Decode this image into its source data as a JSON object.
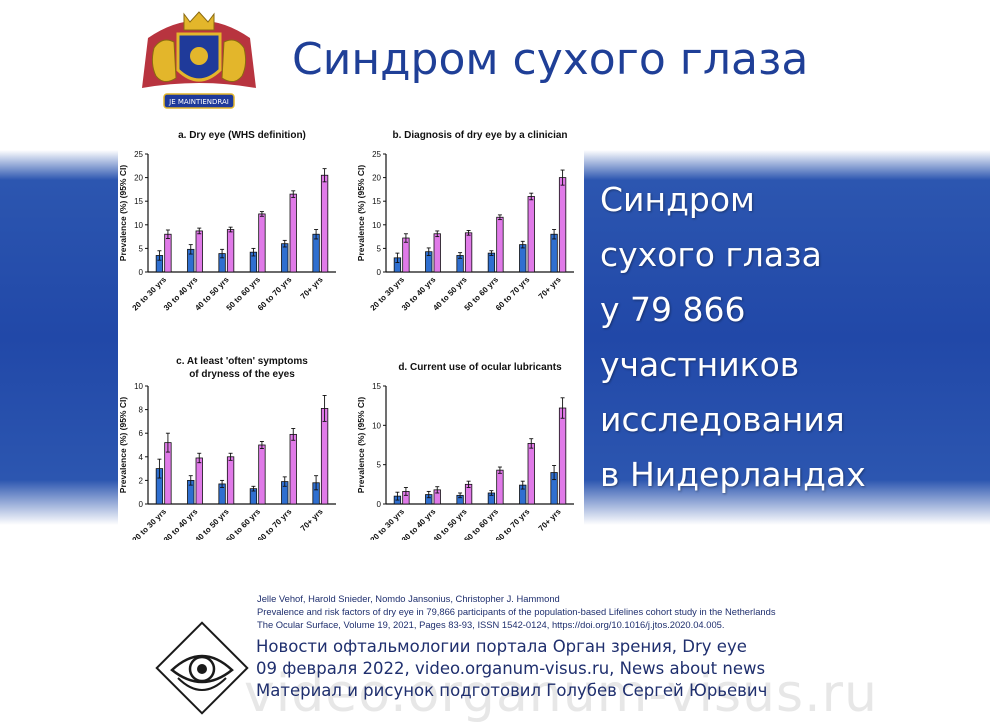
{
  "slide": {
    "title": "Синдром сухого глаза",
    "coat_text": "JE MAINTIENDRAI",
    "side_text": [
      "Синдром",
      "сухого глаза",
      "у 79 866",
      "участников",
      "исследования",
      "в Нидерландах"
    ],
    "references": [
      "Jelle Vehof, Harold Snieder, Nomdo Jansonius, Christopher J. Hammond",
      "Prevalence and risk factors of dry eye in 79,866 participants of the population-based Lifelines cohort study in the Netherlands",
      "The Ocular Surface, Volume 19, 2021, Pages 83-93, ISSN 1542-0124, https://doi.org/10.1016/j.jtos.2020.04.005."
    ],
    "news": [
      "Новости офтальмологии портала Орган зрения, Dry eye",
      "09 февраля 2022, video.organum-visus.ru, News about news",
      "Материал и рисунок подготовил Голубев Сергей Юрьевич"
    ],
    "watermark": "video.organum-visus.ru"
  },
  "colors": {
    "blue_bar": "#2f6fd0",
    "pink_bar": "#e07ae8",
    "title": "#1f3f97",
    "band": "#2148a8"
  },
  "chart_data": [
    {
      "type": "bar",
      "title": "a. Dry eye (WHS definition)",
      "title2": "",
      "ylabel": "Prevalence (%) (95% CI)",
      "ylim": [
        0,
        25
      ],
      "yticks": [
        0,
        5,
        10,
        15,
        20,
        25
      ],
      "categories": [
        "20 to 30 yrs",
        "30 to 40 yrs",
        "40 to 50 yrs",
        "50 to 60 yrs",
        "60 to 70 yrs",
        "70+ yrs"
      ],
      "series": [
        {
          "color": "#2f6fd0",
          "values": [
            3.5,
            4.8,
            3.9,
            4.2,
            6.0,
            8.0
          ],
          "err": [
            1.0,
            1.0,
            0.9,
            0.8,
            0.7,
            1.0
          ]
        },
        {
          "color": "#e07ae8",
          "values": [
            8.0,
            8.7,
            9.0,
            12.3,
            16.5,
            20.5
          ],
          "err": [
            0.9,
            0.6,
            0.5,
            0.5,
            0.7,
            1.4
          ]
        }
      ]
    },
    {
      "type": "bar",
      "title": "b. Diagnosis of dry eye by a clinician",
      "title2": "",
      "ylabel": "Prevalence (%) (95% CI)",
      "ylim": [
        0,
        25
      ],
      "yticks": [
        0,
        5,
        10,
        15,
        20,
        25
      ],
      "categories": [
        "20 to 30 yrs",
        "30 to 40 yrs",
        "40 to 50 yrs",
        "50 to 60 yrs",
        "60 to 70 yrs",
        "70+ yrs"
      ],
      "series": [
        {
          "color": "#2f6fd0",
          "values": [
            3.0,
            4.3,
            3.5,
            4.0,
            5.8,
            8.0
          ],
          "err": [
            1.0,
            0.8,
            0.6,
            0.5,
            0.7,
            1.0
          ]
        },
        {
          "color": "#e07ae8",
          "values": [
            7.2,
            8.1,
            8.3,
            11.6,
            16.0,
            20.0
          ],
          "err": [
            0.9,
            0.6,
            0.5,
            0.5,
            0.7,
            1.6
          ]
        }
      ]
    },
    {
      "type": "bar",
      "title": "c. At least 'often' symptoms",
      "title2": "of dryness of the eyes",
      "ylabel": "Prevalence (%) (95% CI)",
      "ylim": [
        0,
        10
      ],
      "yticks": [
        0,
        2,
        4,
        6,
        8,
        10
      ],
      "categories": [
        "20 to 30 yrs",
        "30 to 40 yrs",
        "40 to 50 yrs",
        "50 to 60 yrs",
        "60 to 70 yrs",
        "70+ yrs"
      ],
      "series": [
        {
          "color": "#2f6fd0",
          "values": [
            3.0,
            2.0,
            1.7,
            1.3,
            1.9,
            1.8
          ],
          "err": [
            0.8,
            0.4,
            0.3,
            0.2,
            0.4,
            0.6
          ]
        },
        {
          "color": "#e07ae8",
          "values": [
            5.2,
            3.9,
            4.0,
            5.0,
            5.9,
            8.1
          ],
          "err": [
            0.8,
            0.4,
            0.3,
            0.3,
            0.5,
            1.1
          ]
        }
      ]
    },
    {
      "type": "bar",
      "title": "d. Current use of ocular lubricants",
      "title2": "",
      "ylabel": "Prevalence (%) (95% CI)",
      "ylim": [
        0,
        15
      ],
      "yticks": [
        0,
        5,
        10,
        15
      ],
      "categories": [
        "20 to 30 yrs",
        "30 to 40 yrs",
        "40 to 50 yrs",
        "50 to 60 yrs",
        "60 to 70 yrs",
        "70+ yrs"
      ],
      "series": [
        {
          "color": "#2f6fd0",
          "values": [
            1.0,
            1.2,
            1.1,
            1.4,
            2.4,
            4.0
          ],
          "err": [
            0.5,
            0.4,
            0.3,
            0.3,
            0.5,
            0.9
          ]
        },
        {
          "color": "#e07ae8",
          "values": [
            1.6,
            1.8,
            2.5,
            4.3,
            7.7,
            12.2
          ],
          "err": [
            0.5,
            0.4,
            0.4,
            0.4,
            0.6,
            1.3
          ]
        }
      ]
    }
  ]
}
